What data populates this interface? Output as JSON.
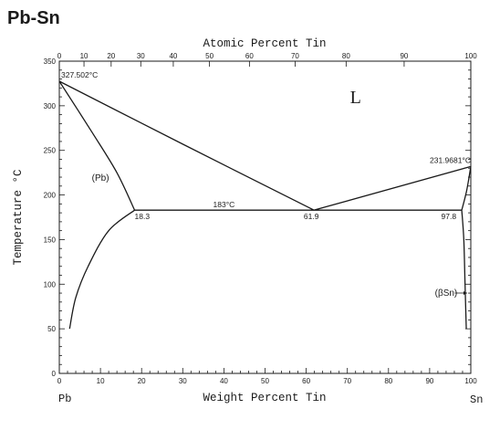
{
  "chart_data": {
    "type": "line",
    "title": "Pb-Sn",
    "xlabel_bottom": "Weight Percent Tin",
    "xlabel_top": "Atomic Percent Tin",
    "ylabel": "Temperature °C",
    "element_left": "Pb",
    "element_right": "Sn",
    "xlim": [
      0,
      100
    ],
    "ylim": [
      0,
      350
    ],
    "bottom_ticks": [
      0,
      10,
      20,
      30,
      40,
      50,
      60,
      70,
      80,
      90,
      100
    ],
    "top_ticks": [
      {
        "label": "0",
        "wt": 0
      },
      {
        "label": "10",
        "wt": 6.0
      },
      {
        "label": "20",
        "wt": 12.6
      },
      {
        "label": "30",
        "wt": 19.8
      },
      {
        "label": "40",
        "wt": 27.7
      },
      {
        "label": "50",
        "wt": 36.5
      },
      {
        "label": "60",
        "wt": 46.2
      },
      {
        "label": "70",
        "wt": 57.3
      },
      {
        "label": "80",
        "wt": 69.7
      },
      {
        "label": "90",
        "wt": 83.8
      },
      {
        "label": "100",
        "wt": 100
      }
    ],
    "y_ticks": [
      0,
      50,
      100,
      150,
      200,
      250,
      300,
      350
    ],
    "series": [
      {
        "points": [
          [
            0,
            327.502
          ],
          [
            8,
            270
          ],
          [
            14,
            225
          ],
          [
            18.3,
            183
          ]
        ]
      },
      {
        "points": [
          [
            0,
            327.502
          ],
          [
            30,
            257
          ],
          [
            61.9,
            183
          ]
        ]
      },
      {
        "points": [
          [
            61.9,
            183
          ],
          [
            100,
            231.9681
          ]
        ]
      },
      {
        "points": [
          [
            18.3,
            183
          ],
          [
            97.8,
            183
          ]
        ]
      },
      {
        "points": [
          [
            18.3,
            183
          ],
          [
            12,
            160
          ],
          [
            7,
            120
          ],
          [
            4,
            85
          ],
          [
            2.5,
            50
          ]
        ]
      },
      {
        "points": [
          [
            97.8,
            183
          ],
          [
            98.3,
            150
          ],
          [
            98.6,
            100
          ],
          [
            98.9,
            50
          ]
        ]
      },
      {
        "points": [
          [
            97.8,
            183
          ],
          [
            99,
            205
          ],
          [
            100,
            231.9681
          ]
        ]
      }
    ],
    "annotations": [
      {
        "text": "327.502°C",
        "x": 0,
        "y": 327.502
      },
      {
        "text": "231.9681°C",
        "x": 100,
        "y": 231.9681
      },
      {
        "text": "183°C",
        "x": 40,
        "y": 183
      },
      {
        "text": "18.3",
        "x": 18.3,
        "y": 183
      },
      {
        "text": "61.9",
        "x": 61.9,
        "y": 183
      },
      {
        "text": "97.8",
        "x": 97.8,
        "y": 183
      }
    ],
    "phase_labels": [
      {
        "text": "L",
        "x": 72,
        "y": 303
      },
      {
        "text": "(Pb)",
        "x": 10,
        "y": 216
      },
      {
        "text": "(βSn)",
        "x": 94,
        "y": 87
      }
    ]
  }
}
